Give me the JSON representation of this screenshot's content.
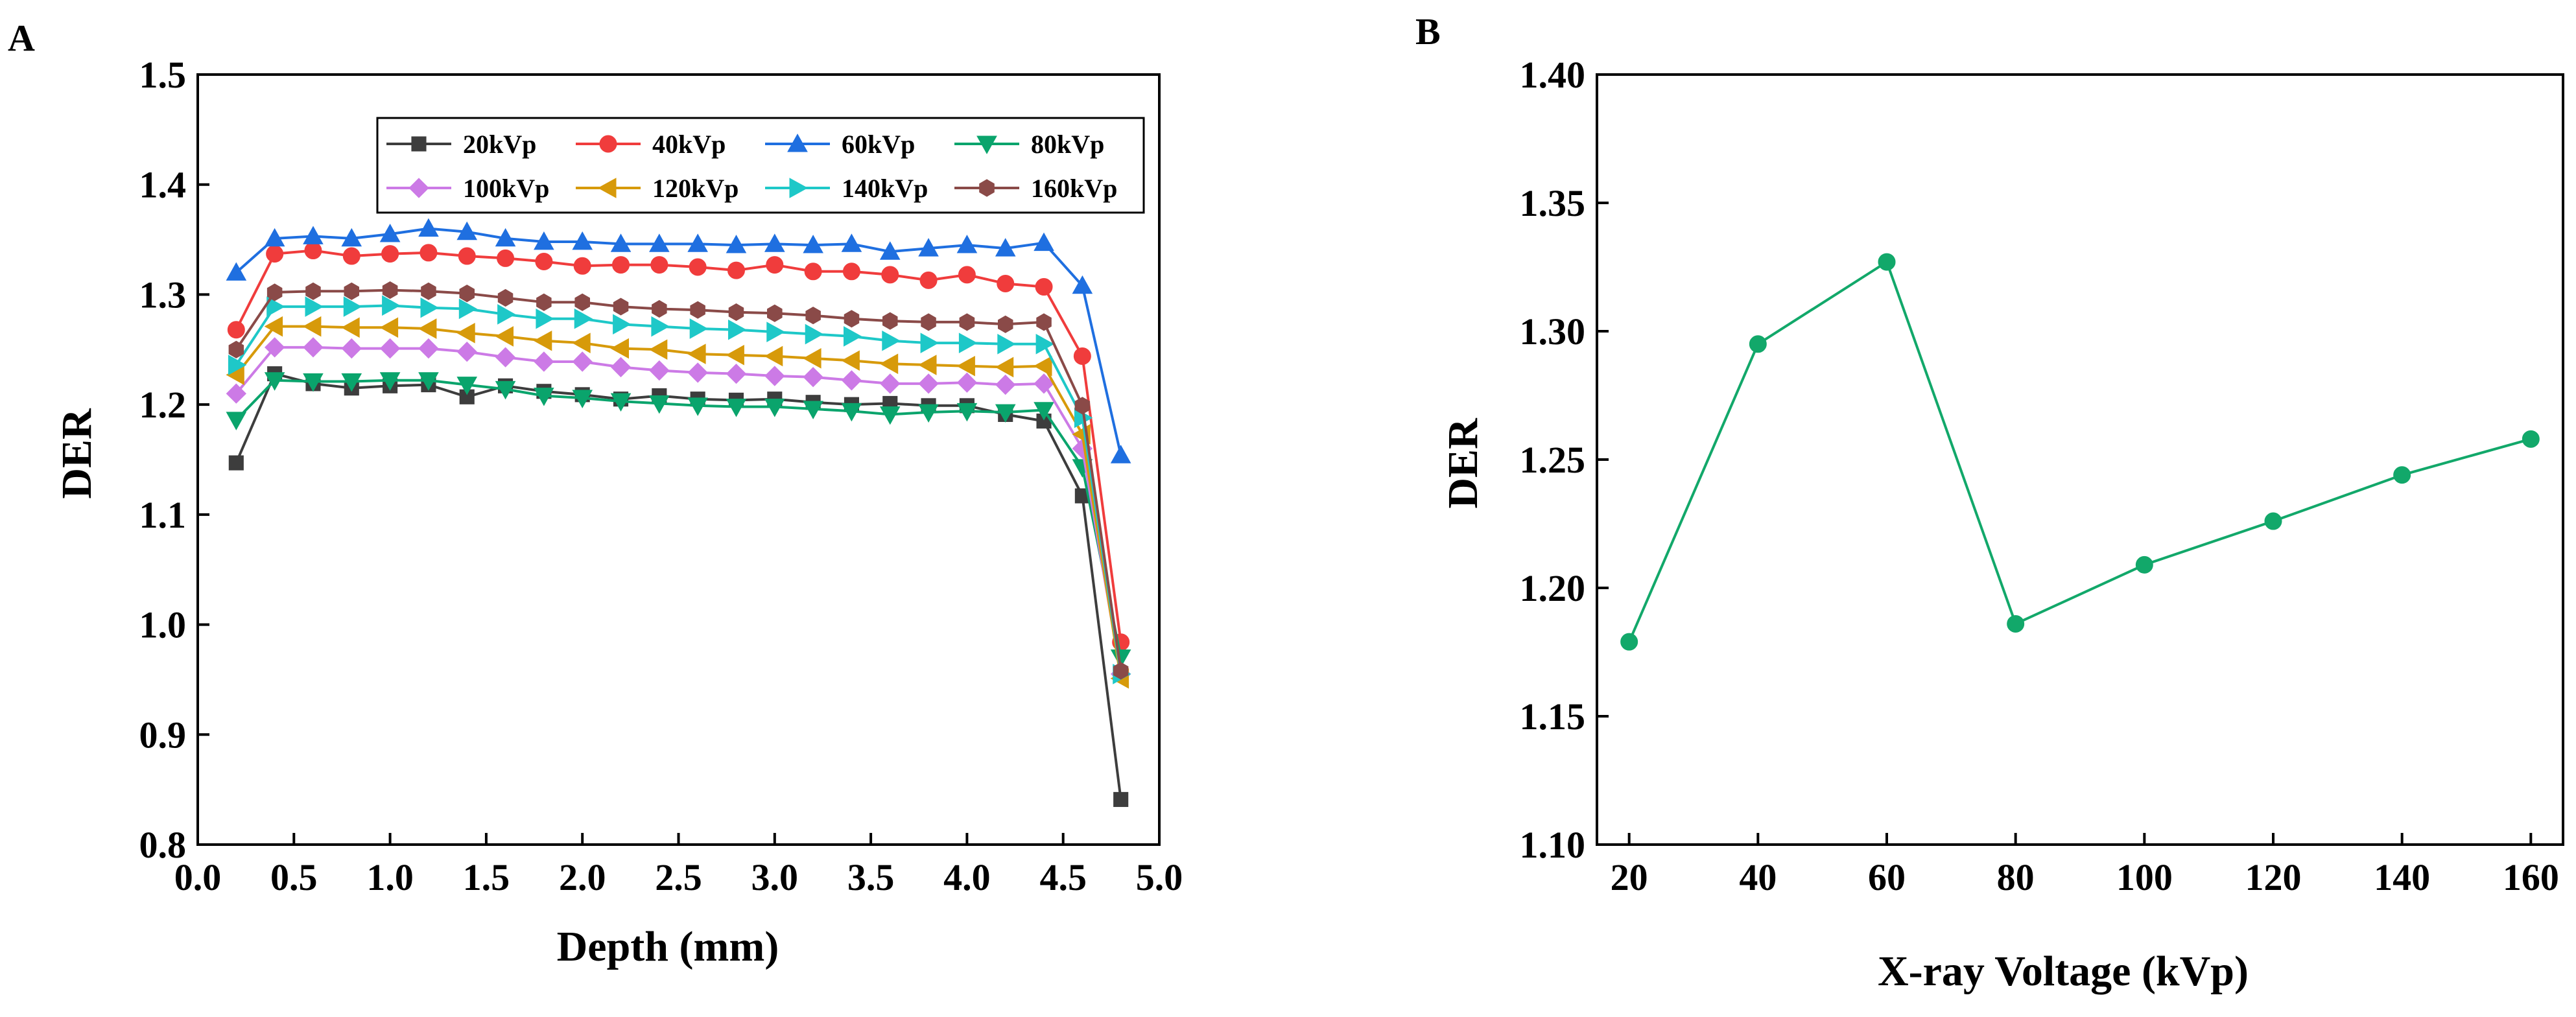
{
  "chart_data": [
    {
      "panel": "A",
      "type": "line",
      "xlabel": "Depth (mm)",
      "ylabel": "DER",
      "xlim": [
        0.0,
        5.0
      ],
      "ylim": [
        0.8,
        1.5
      ],
      "xticks": [
        "0.0",
        "0.5",
        "1.0",
        "1.5",
        "2.0",
        "2.5",
        "3.0",
        "3.5",
        "4.0",
        "4.5",
        "5.0"
      ],
      "yticks": [
        "0.8",
        "0.9",
        "1.0",
        "1.1",
        "1.2",
        "1.3",
        "1.4",
        "1.5"
      ],
      "x": [
        0.2,
        0.4,
        0.6,
        0.8,
        1.0,
        1.2,
        1.4,
        1.6,
        1.8,
        2.0,
        2.2,
        2.4,
        2.6,
        2.8,
        3.0,
        3.2,
        3.4,
        3.6,
        3.8,
        4.0,
        4.2,
        4.4,
        4.6,
        4.8
      ],
      "legend": "top-right inside",
      "series": [
        {
          "name": "20kVp",
          "color": "#3d3d3d",
          "marker": "square",
          "values": [
            1.147,
            1.228,
            1.219,
            1.215,
            1.217,
            1.218,
            1.207,
            1.217,
            1.212,
            1.209,
            1.205,
            1.208,
            1.205,
            1.204,
            1.205,
            1.202,
            1.2,
            1.201,
            1.199,
            1.199,
            1.191,
            1.185,
            1.117,
            0.841
          ]
        },
        {
          "name": "40kVp",
          "color": "#f03c3c",
          "marker": "circle",
          "values": [
            1.268,
            1.337,
            1.34,
            1.335,
            1.337,
            1.338,
            1.335,
            1.333,
            1.33,
            1.326,
            1.327,
            1.327,
            1.325,
            1.322,
            1.327,
            1.321,
            1.321,
            1.318,
            1.313,
            1.318,
            1.31,
            1.307,
            1.244,
            0.984
          ]
        },
        {
          "name": "60kVp",
          "color": "#1f6fe0",
          "marker": "triangle-up",
          "values": [
            1.32,
            1.351,
            1.353,
            1.351,
            1.355,
            1.36,
            1.357,
            1.351,
            1.348,
            1.348,
            1.346,
            1.346,
            1.346,
            1.345,
            1.346,
            1.345,
            1.346,
            1.339,
            1.342,
            1.345,
            1.342,
            1.347,
            1.308,
            1.154
          ]
        },
        {
          "name": "80kVp",
          "color": "#0aa46c",
          "marker": "triangle-down",
          "values": [
            1.186,
            1.222,
            1.221,
            1.221,
            1.222,
            1.222,
            1.218,
            1.214,
            1.208,
            1.206,
            1.203,
            1.201,
            1.199,
            1.198,
            1.198,
            1.196,
            1.194,
            1.191,
            1.193,
            1.194,
            1.193,
            1.195,
            1.143,
            0.97
          ]
        },
        {
          "name": "100kVp",
          "color": "#cc7ae6",
          "marker": "diamond",
          "values": [
            1.21,
            1.252,
            1.252,
            1.251,
            1.251,
            1.251,
            1.248,
            1.243,
            1.239,
            1.239,
            1.234,
            1.231,
            1.229,
            1.228,
            1.226,
            1.225,
            1.222,
            1.219,
            1.219,
            1.22,
            1.218,
            1.219,
            1.16,
            0.955
          ]
        },
        {
          "name": "120kVp",
          "color": "#d79a0a",
          "marker": "triangle-left",
          "values": [
            1.227,
            1.271,
            1.271,
            1.27,
            1.27,
            1.269,
            1.265,
            1.262,
            1.258,
            1.256,
            1.251,
            1.25,
            1.246,
            1.245,
            1.244,
            1.242,
            1.24,
            1.237,
            1.236,
            1.235,
            1.234,
            1.235,
            1.173,
            0.951
          ]
        },
        {
          "name": "140kVp",
          "color": "#1ec8c8",
          "marker": "triangle-right",
          "values": [
            1.236,
            1.289,
            1.289,
            1.289,
            1.29,
            1.288,
            1.287,
            1.282,
            1.278,
            1.278,
            1.273,
            1.271,
            1.269,
            1.268,
            1.266,
            1.264,
            1.262,
            1.258,
            1.256,
            1.256,
            1.255,
            1.255,
            1.188,
            0.955
          ]
        },
        {
          "name": "160kVp",
          "color": "#8a4a48",
          "marker": "hexagon",
          "values": [
            1.25,
            1.302,
            1.303,
            1.303,
            1.304,
            1.303,
            1.301,
            1.297,
            1.293,
            1.293,
            1.289,
            1.287,
            1.286,
            1.284,
            1.283,
            1.281,
            1.278,
            1.276,
            1.275,
            1.275,
            1.273,
            1.275,
            1.199,
            0.958
          ]
        }
      ]
    },
    {
      "panel": "B",
      "type": "line",
      "xlabel": "X-ray Voltage (kVp)",
      "ylabel": "DER",
      "xlim": [
        15,
        165
      ],
      "ylim": [
        1.1,
        1.4
      ],
      "xticks": [
        "20",
        "40",
        "60",
        "80",
        "100",
        "120",
        "140",
        "160"
      ],
      "yticks": [
        "1.10",
        "1.15",
        "1.20",
        "1.25",
        "1.30",
        "1.35",
        "1.40"
      ],
      "series": [
        {
          "name": "DER",
          "color": "#12a86a",
          "marker": "circle",
          "x": [
            20,
            40,
            60,
            80,
            100,
            120,
            140,
            160
          ],
          "values": [
            1.179,
            1.295,
            1.327,
            1.186,
            1.209,
            1.226,
            1.244,
            1.258
          ]
        }
      ]
    }
  ]
}
